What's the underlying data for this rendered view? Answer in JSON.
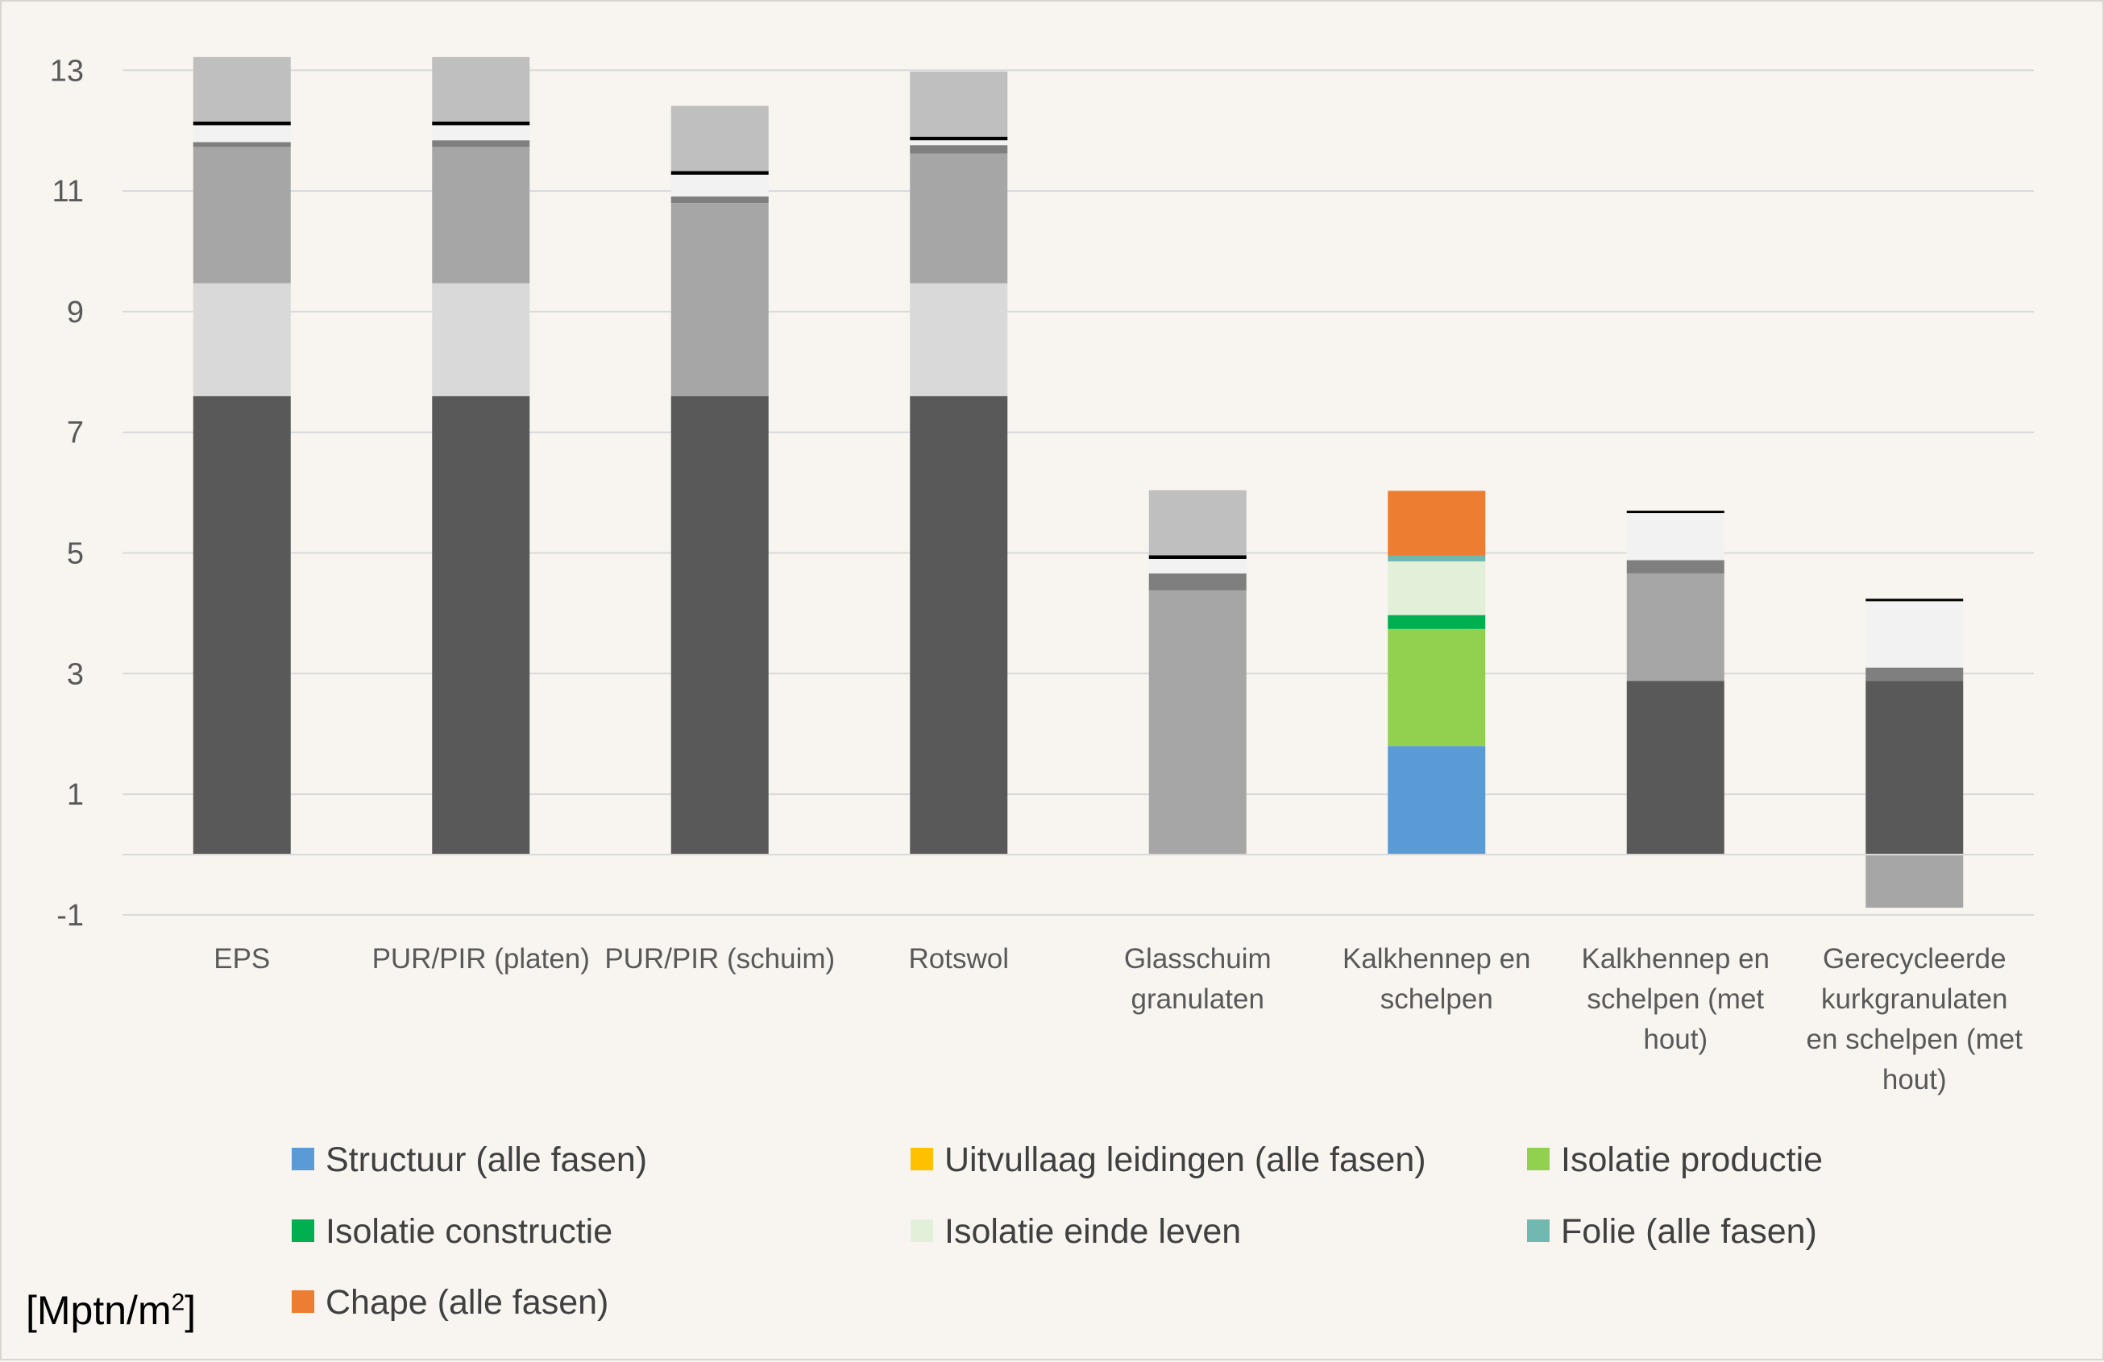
{
  "chart_data": {
    "type": "bar",
    "stacked": true,
    "unit_label": {
      "prefix": "[Mptn/m",
      "superscript": "2",
      "suffix": "]"
    },
    "y_ticks": [
      13,
      11,
      9,
      7,
      5,
      3,
      1,
      -1
    ],
    "ylim": [
      -1,
      13
    ],
    "grid": true,
    "legend_position": "bottom",
    "categories": [
      [
        "EPS"
      ],
      [
        "PUR/PIR (platen)"
      ],
      [
        "PUR/PIR (schuim)"
      ],
      [
        "Rotswol"
      ],
      [
        "Glasschuim",
        "granulaten"
      ],
      [
        "Kalkhennep en",
        "schelpen"
      ],
      [
        "Kalkhennep en",
        "schelpen (met",
        "hout)"
      ],
      [
        "Gerecycleerde",
        "kurkgranulaten",
        "en schelpen (met",
        "hout)"
      ]
    ],
    "legend": [
      {
        "label": "Structuur (alle fasen)",
        "color": "#5B9BD5"
      },
      {
        "label": "Uitvullaag leidingen (alle fasen)",
        "color": "#FFC000"
      },
      {
        "label": "Isolatie productie",
        "color": "#92D050"
      },
      {
        "label": "Isolatie constructie",
        "color": "#00B050"
      },
      {
        "label": "Isolatie einde leven",
        "color": "#E2F0D9"
      },
      {
        "label": "Folie (alle fasen)",
        "color": "#70B8B0"
      },
      {
        "label": "Chape (alle fasen)",
        "color": "#ED7D31"
      }
    ],
    "bars": [
      {
        "segments": [
          {
            "from": 0,
            "to": 7.6,
            "color": "#595959"
          },
          {
            "from": 7.6,
            "to": 9.47,
            "color": "#D9D9D9"
          },
          {
            "from": 9.47,
            "to": 11.73,
            "color": "#A6A6A6"
          },
          {
            "from": 11.73,
            "to": 11.81,
            "color": "#7F7F7F"
          },
          {
            "from": 11.81,
            "to": 12.09,
            "color": "#F2F2F2"
          },
          {
            "from": 12.09,
            "to": 12.15,
            "color": "#000000"
          },
          {
            "from": 12.15,
            "to": 13.22,
            "color": "#BFBFBF"
          }
        ]
      },
      {
        "segments": [
          {
            "from": 0,
            "to": 7.6,
            "color": "#595959"
          },
          {
            "from": 7.6,
            "to": 9.47,
            "color": "#D9D9D9"
          },
          {
            "from": 9.47,
            "to": 11.73,
            "color": "#A6A6A6"
          },
          {
            "from": 11.73,
            "to": 11.84,
            "color": "#7F7F7F"
          },
          {
            "from": 11.84,
            "to": 12.09,
            "color": "#F2F2F2"
          },
          {
            "from": 12.09,
            "to": 12.15,
            "color": "#000000"
          },
          {
            "from": 12.15,
            "to": 13.22,
            "color": "#BFBFBF"
          }
        ]
      },
      {
        "segments": [
          {
            "from": 0,
            "to": 7.6,
            "color": "#595959"
          },
          {
            "from": 7.6,
            "to": 10.8,
            "color": "#A6A6A6"
          },
          {
            "from": 10.8,
            "to": 10.91,
            "color": "#7F7F7F"
          },
          {
            "from": 10.91,
            "to": 11.27,
            "color": "#F2F2F2"
          },
          {
            "from": 11.27,
            "to": 11.33,
            "color": "#000000"
          },
          {
            "from": 11.33,
            "to": 12.41,
            "color": "#BFBFBF"
          }
        ]
      },
      {
        "segments": [
          {
            "from": 0,
            "to": 7.6,
            "color": "#595959"
          },
          {
            "from": 7.6,
            "to": 9.47,
            "color": "#D9D9D9"
          },
          {
            "from": 9.47,
            "to": 11.62,
            "color": "#A6A6A6"
          },
          {
            "from": 11.62,
            "to": 11.76,
            "color": "#7F7F7F"
          },
          {
            "from": 11.76,
            "to": 11.84,
            "color": "#F2F2F2"
          },
          {
            "from": 11.84,
            "to": 11.9,
            "color": "#000000"
          },
          {
            "from": 11.9,
            "to": 12.98,
            "color": "#BFBFBF"
          }
        ]
      },
      {
        "segments": [
          {
            "from": 0,
            "to": 4.38,
            "color": "#A6A6A6"
          },
          {
            "from": 4.38,
            "to": 4.66,
            "color": "#7F7F7F"
          },
          {
            "from": 4.66,
            "to": 4.9,
            "color": "#F2F2F2"
          },
          {
            "from": 4.9,
            "to": 4.96,
            "color": "#000000"
          },
          {
            "from": 4.96,
            "to": 6.04,
            "color": "#BFBFBF"
          }
        ]
      },
      {
        "segments": [
          {
            "from": 0,
            "to": 1.8,
            "color": "#5B9BD5"
          },
          {
            "from": 1.8,
            "to": 3.74,
            "color": "#92D050"
          },
          {
            "from": 3.74,
            "to": 3.97,
            "color": "#00B050"
          },
          {
            "from": 3.97,
            "to": 4.86,
            "color": "#E2F0D9"
          },
          {
            "from": 4.86,
            "to": 4.96,
            "color": "#70B8B0"
          },
          {
            "from": 4.96,
            "to": 6.03,
            "color": "#ED7D31"
          }
        ]
      },
      {
        "segments": [
          {
            "from": 0,
            "to": 2.88,
            "color": "#595959"
          },
          {
            "from": 2.88,
            "to": 4.66,
            "color": "#A6A6A6"
          },
          {
            "from": 4.66,
            "to": 4.88,
            "color": "#7F7F7F"
          },
          {
            "from": 4.88,
            "to": 5.66,
            "color": "#F2F2F2"
          },
          {
            "from": 5.66,
            "to": 5.7,
            "color": "#000000"
          }
        ]
      },
      {
        "segments": [
          {
            "from": -0.88,
            "to": 0,
            "color": "#A6A6A6"
          },
          {
            "from": 0,
            "to": 2.88,
            "color": "#595959"
          },
          {
            "from": 2.88,
            "to": 3.1,
            "color": "#7F7F7F"
          },
          {
            "from": 3.1,
            "to": 4.2,
            "color": "#F2F2F2"
          },
          {
            "from": 4.2,
            "to": 4.24,
            "color": "#000000"
          }
        ]
      }
    ]
  }
}
